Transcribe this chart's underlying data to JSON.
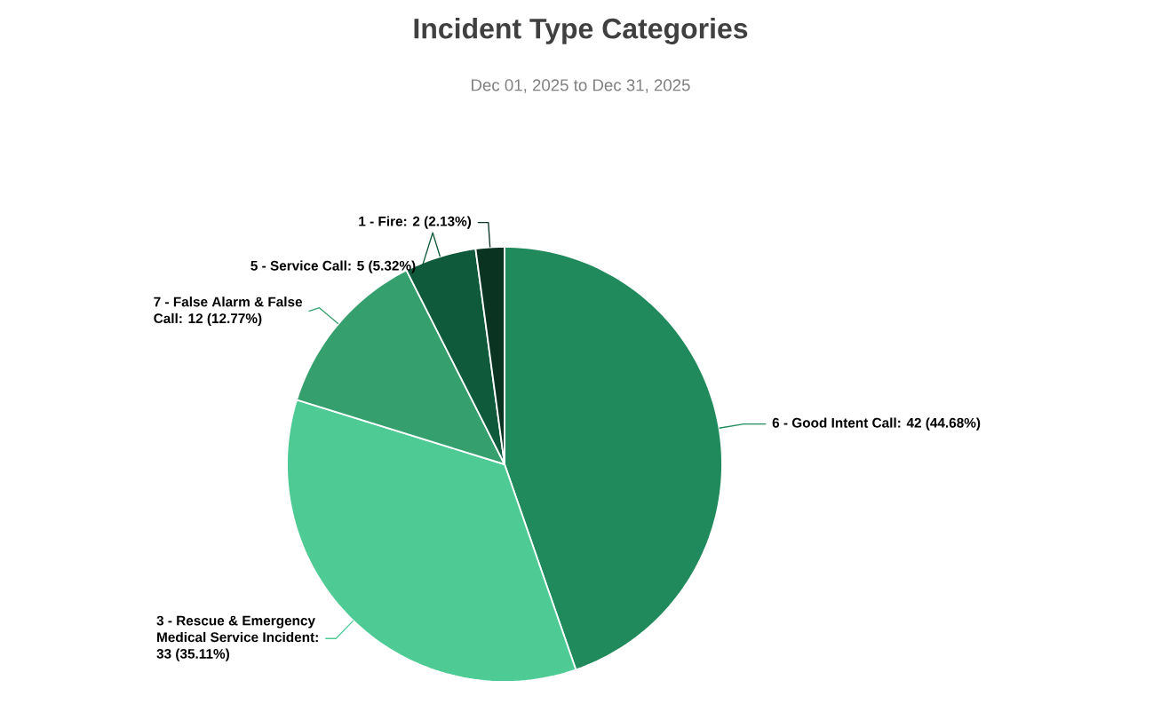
{
  "chart_data": {
    "type": "pie",
    "title": "Incident Type Categories",
    "subtitle": "Dec 01, 2025 to Dec 31, 2025",
    "categories": [
      "6 - Good Intent Call",
      "3 - Rescue & Emergency Medical Service Incident",
      "7 - False Alarm & False Call",
      "5 - Service Call",
      "1 - Fire"
    ],
    "values": [
      42,
      33,
      12,
      5,
      2
    ],
    "value_labels": [
      ": 42 (44.68%)",
      ": 33 (35.11%)",
      ": 12 (12.77%)",
      ": 5 (5.32%)",
      ": 2 (2.13%)"
    ],
    "colors": [
      "#218a5c",
      "#4ecb94",
      "#35a06e",
      "#0f5a3a",
      "#0a3322"
    ]
  }
}
